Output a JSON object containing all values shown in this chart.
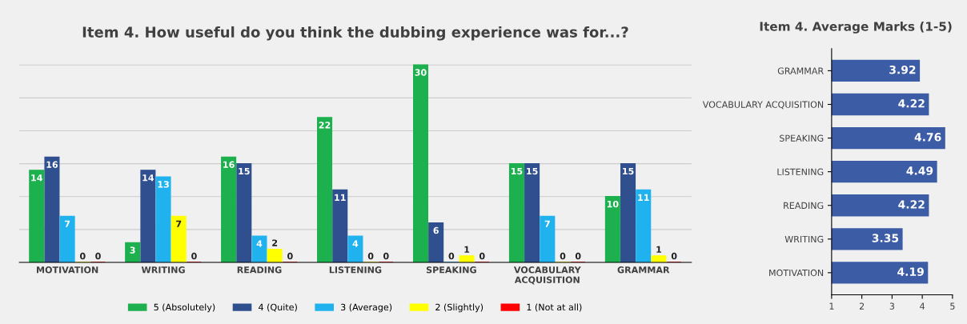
{
  "chart_data": [
    {
      "type": "bar",
      "title": "Item 4. How useful do you think the dubbing experience was for...?",
      "categories": [
        "MOTIVATION",
        "WRITING",
        "READING",
        "LISTENING",
        "SPEAKING",
        "VOCABULARY\nACQUISITION",
        "GRAMMAR"
      ],
      "series": [
        {
          "name": "5 (Absolutely)",
          "color": "#1db04f",
          "values": [
            14,
            3,
            16,
            22,
            30,
            15,
            10
          ]
        },
        {
          "name": "4 (Quite)",
          "color": "#2f4f8f",
          "values": [
            16,
            14,
            15,
            11,
            6,
            15,
            15
          ]
        },
        {
          "name": "3 (Average)",
          "color": "#20b2ee",
          "values": [
            7,
            13,
            4,
            4,
            0,
            7,
            11
          ]
        },
        {
          "name": "2 (Slightly)",
          "color": "#ffff00",
          "values": [
            0,
            7,
            2,
            0,
            1,
            0,
            1
          ]
        },
        {
          "name": "1 (Not at all)",
          "color": "#ff0000",
          "values": [
            0,
            0,
            0,
            0,
            0,
            0,
            0
          ]
        }
      ],
      "data_labels": true,
      "grid": "y",
      "tick_labels": "x",
      "legend": "bottom"
    },
    {
      "type": "bar",
      "orientation": "horizontal",
      "title": "Item 4. Average Marks (1-5)",
      "categories": [
        "GRAMMAR",
        "VOCABULARY ACQUISITION",
        "SPEAKING",
        "LISTENING",
        "READING",
        "WRITING",
        "MOTIVATION"
      ],
      "series": [
        {
          "color": "#3c5ca6",
          "values": [
            3.92,
            4.22,
            4.76,
            4.49,
            4.22,
            3.35,
            4.19
          ]
        }
      ],
      "xlim": [
        1,
        5
      ],
      "xticks": [
        1,
        2,
        3,
        4,
        5
      ],
      "data_labels": true
    }
  ]
}
